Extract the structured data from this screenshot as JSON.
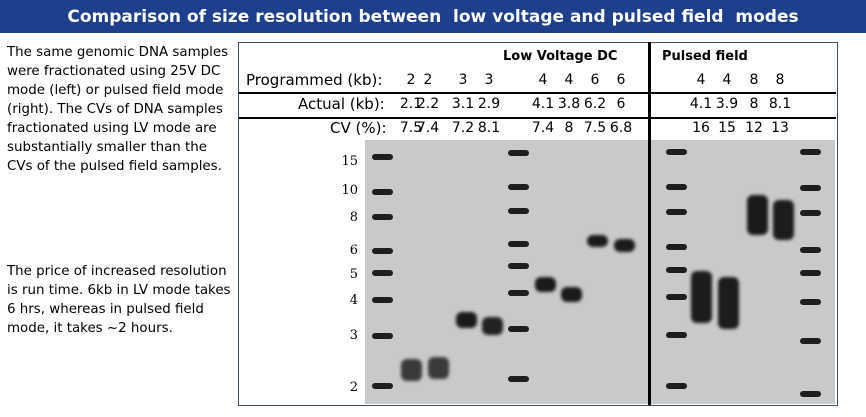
{
  "title": "Comparison of size resolution between  low voltage and pulsed field  modes",
  "paragraphs": [
    "The same genomic DNA samples were fractionated using 25V DC mode (left) or pulsed field mode (right). The CVs of DNA samples fractionated using LV mode are substantially smaller than the CVs of the pulsed field samples.",
    "The price of increased resolution is run time. 6kb in LV mode takes 6 hrs, whereas in pulsed field mode, it takes ~2 hours."
  ],
  "table": {
    "sections": [
      "Low Voltage DC",
      "Pulsed field"
    ],
    "row_labels": [
      "Programmed (kb):",
      "Actual (kb):",
      "CV (%):"
    ],
    "programmed": [
      "2",
      "2",
      "3",
      "3",
      "4",
      "4",
      "6",
      "6",
      "4",
      "4",
      "8",
      "8"
    ],
    "actual": [
      "2.1",
      "2.2",
      "3.1",
      "2.9",
      "4.1",
      "3.8",
      "6.2",
      "6",
      "4.1",
      "3.9",
      "8",
      "8.1"
    ],
    "cv": [
      "7.5",
      "7.4",
      "7.2",
      "8.1",
      "7.4",
      "8",
      "7.5",
      "6.8",
      "16",
      "15",
      "12",
      "13"
    ]
  },
  "marker_labels": [
    "15",
    "10",
    "8",
    "6",
    "5",
    "4",
    "3",
    "2"
  ],
  "colors": {
    "title_bg": "#1e3f8c",
    "gel_bg": "#c9c9c9",
    "band": "#1e1e1e"
  }
}
